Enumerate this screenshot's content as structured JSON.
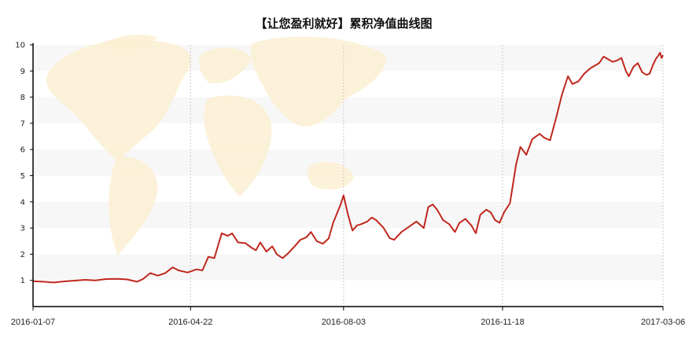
{
  "chart_data": {
    "type": "line",
    "title": "【让您盈利就好】累积净值曲线图",
    "xlabel": "",
    "ylabel": "",
    "x_range": [
      "2016-01-07",
      "2017-03-06"
    ],
    "ylim": [
      0,
      10
    ],
    "yticks": [
      1,
      2,
      3,
      4,
      5,
      6,
      7,
      8,
      9,
      10
    ],
    "xticks": [
      "2016-01-07",
      "2016-04-22",
      "2016-08-03",
      "2016-11-18",
      "2017-03-06"
    ],
    "grid": "alternating horizontal bands with dotted vertical gridlines",
    "background": "faint world map",
    "colors": {
      "line": "#c0281e",
      "band": "#f7f7f7",
      "map": "#fbf0d2",
      "axis": "#000000",
      "vgrid": "#cccccc"
    },
    "series": [
      {
        "points": [
          [
            "2016-01-07",
            0.97
          ],
          [
            "2016-01-14",
            0.95
          ],
          [
            "2016-01-21",
            0.92
          ],
          [
            "2016-01-28",
            0.96
          ],
          [
            "2016-02-04",
            0.99
          ],
          [
            "2016-02-11",
            1.02
          ],
          [
            "2016-02-18",
            1.0
          ],
          [
            "2016-02-25",
            1.05
          ],
          [
            "2016-03-03",
            1.06
          ],
          [
            "2016-03-10",
            1.04
          ],
          [
            "2016-03-17",
            0.95
          ],
          [
            "2016-03-21",
            1.05
          ],
          [
            "2016-03-26",
            1.28
          ],
          [
            "2016-03-31",
            1.18
          ],
          [
            "2016-04-05",
            1.28
          ],
          [
            "2016-04-10",
            1.5
          ],
          [
            "2016-04-14",
            1.38
          ],
          [
            "2016-04-20",
            1.3
          ],
          [
            "2016-04-26",
            1.42
          ],
          [
            "2016-04-30",
            1.38
          ],
          [
            "2016-05-04",
            1.9
          ],
          [
            "2016-05-08",
            1.85
          ],
          [
            "2016-05-13",
            2.8
          ],
          [
            "2016-05-17",
            2.7
          ],
          [
            "2016-05-20",
            2.8
          ],
          [
            "2016-05-24",
            2.45
          ],
          [
            "2016-05-29",
            2.42
          ],
          [
            "2016-06-02",
            2.25
          ],
          [
            "2016-06-05",
            2.15
          ],
          [
            "2016-06-08",
            2.45
          ],
          [
            "2016-06-12",
            2.1
          ],
          [
            "2016-06-16",
            2.3
          ],
          [
            "2016-06-19",
            2.0
          ],
          [
            "2016-06-23",
            1.85
          ],
          [
            "2016-06-27",
            2.05
          ],
          [
            "2016-07-01",
            2.3
          ],
          [
            "2016-07-05",
            2.55
          ],
          [
            "2016-07-09",
            2.65
          ],
          [
            "2016-07-12",
            2.85
          ],
          [
            "2016-07-16",
            2.5
          ],
          [
            "2016-07-20",
            2.4
          ],
          [
            "2016-07-24",
            2.6
          ],
          [
            "2016-07-27",
            3.2
          ],
          [
            "2016-08-01",
            3.9
          ],
          [
            "2016-08-03",
            4.25
          ],
          [
            "2016-08-06",
            3.5
          ],
          [
            "2016-08-09",
            2.9
          ],
          [
            "2016-08-12",
            3.1
          ],
          [
            "2016-08-15",
            3.15
          ],
          [
            "2016-08-19",
            3.25
          ],
          [
            "2016-08-22",
            3.4
          ],
          [
            "2016-08-25",
            3.3
          ],
          [
            "2016-08-30",
            3.0
          ],
          [
            "2016-09-03",
            2.62
          ],
          [
            "2016-09-06",
            2.55
          ],
          [
            "2016-09-11",
            2.85
          ],
          [
            "2016-09-16",
            3.05
          ],
          [
            "2016-09-21",
            3.25
          ],
          [
            "2016-09-26",
            3.0
          ],
          [
            "2016-09-29",
            3.8
          ],
          [
            "2016-10-02",
            3.9
          ],
          [
            "2016-10-05",
            3.7
          ],
          [
            "2016-10-09",
            3.3
          ],
          [
            "2016-10-13",
            3.15
          ],
          [
            "2016-10-17",
            2.85
          ],
          [
            "2016-10-20",
            3.2
          ],
          [
            "2016-10-24",
            3.35
          ],
          [
            "2016-10-28",
            3.1
          ],
          [
            "2016-10-31",
            2.8
          ],
          [
            "2016-11-03",
            3.5
          ],
          [
            "2016-11-07",
            3.7
          ],
          [
            "2016-11-10",
            3.6
          ],
          [
            "2016-11-13",
            3.3
          ],
          [
            "2016-11-16",
            3.2
          ],
          [
            "2016-11-19",
            3.6
          ],
          [
            "2016-11-23",
            3.95
          ],
          [
            "2016-11-27",
            5.4
          ],
          [
            "2016-11-30",
            6.1
          ],
          [
            "2016-12-04",
            5.8
          ],
          [
            "2016-12-08",
            6.4
          ],
          [
            "2016-12-13",
            6.6
          ],
          [
            "2016-12-16",
            6.45
          ],
          [
            "2016-12-20",
            6.35
          ],
          [
            "2016-12-24",
            7.2
          ],
          [
            "2016-12-28",
            8.1
          ],
          [
            "2017-01-01",
            8.8
          ],
          [
            "2017-01-04",
            8.5
          ],
          [
            "2017-01-08",
            8.6
          ],
          [
            "2017-01-12",
            8.9
          ],
          [
            "2017-01-16",
            9.1
          ],
          [
            "2017-01-19",
            9.2
          ],
          [
            "2017-01-22",
            9.3
          ],
          [
            "2017-01-25",
            9.55
          ],
          [
            "2017-01-28",
            9.45
          ],
          [
            "2017-01-31",
            9.35
          ],
          [
            "2017-02-03",
            9.4
          ],
          [
            "2017-02-06",
            9.5
          ],
          [
            "2017-02-09",
            9.0
          ],
          [
            "2017-02-11",
            8.8
          ],
          [
            "2017-02-14",
            9.15
          ],
          [
            "2017-02-17",
            9.3
          ],
          [
            "2017-02-20",
            8.95
          ],
          [
            "2017-02-23",
            8.85
          ],
          [
            "2017-02-25",
            8.9
          ],
          [
            "2017-02-27",
            9.2
          ],
          [
            "2017-03-01",
            9.45
          ],
          [
            "2017-03-03",
            9.6
          ],
          [
            "2017-03-04",
            9.7
          ],
          [
            "2017-03-05",
            9.5
          ],
          [
            "2017-03-06",
            9.6
          ]
        ]
      }
    ]
  }
}
